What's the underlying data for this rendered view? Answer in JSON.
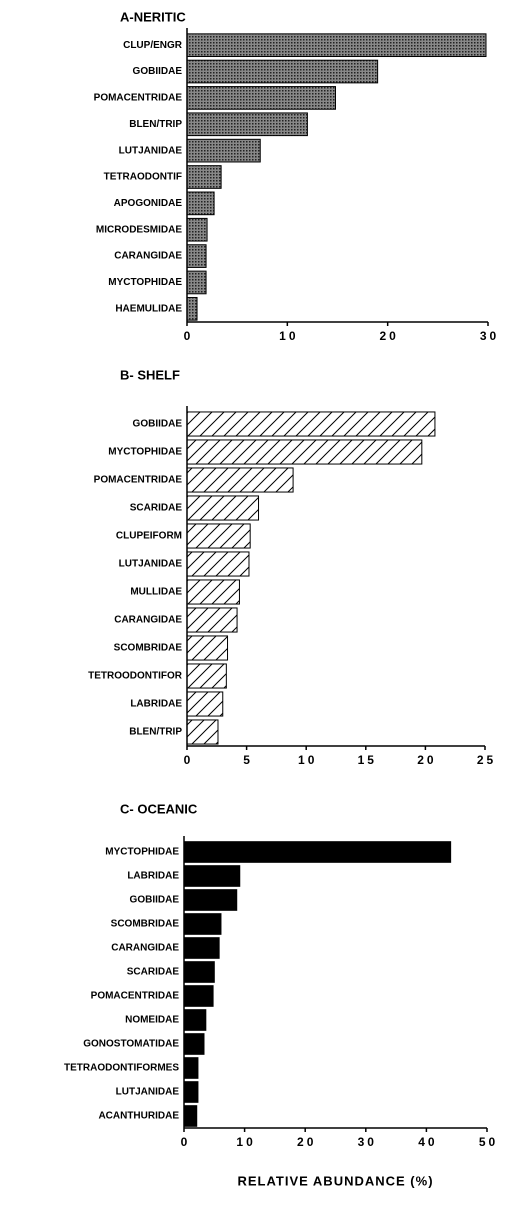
{
  "chart_data": [
    {
      "type": "bar",
      "orientation": "horizontal",
      "title": "A-NERITIC",
      "pattern": "dots",
      "color": "#444444",
      "categories": [
        "CLUP/ENGR",
        "GOBIIDAE",
        "POMACENTRIDAE",
        "BLEN/TRIP",
        "LUTJANIDAE",
        "TETRAODONTIF",
        "APOGONIDAE",
        "MICRODESMIDAE",
        "CARANGIDAE",
        "MYCTOPHIDAE",
        "HAEMULIDAE"
      ],
      "values": [
        29.8,
        19,
        14.8,
        12,
        7.3,
        3.4,
        2.7,
        2,
        1.9,
        1.9,
        1
      ],
      "xlim": [
        0,
        30
      ],
      "xticks": [
        0,
        10,
        20,
        30
      ]
    },
    {
      "type": "bar",
      "orientation": "horizontal",
      "title": "B- SHELF",
      "pattern": "hatch",
      "color": "#000000",
      "categories": [
        "GOBIIDAE",
        "MYCTOPHIDAE",
        "POMACENTRIDAE",
        "SCARIDAE",
        "CLUPEIFORM",
        "LUTJANIDAE",
        "MULLIDAE",
        "CARANGIDAE",
        "SCOMBRIDAE",
        "TETROODONTIFOR",
        "LABRIDAE",
        "BLEN/TRIP"
      ],
      "values": [
        20.8,
        19.7,
        8.9,
        6,
        5.3,
        5.2,
        4.4,
        4.2,
        3.4,
        3.3,
        3,
        2.6
      ],
      "xlim": [
        0,
        25
      ],
      "xticks": [
        0,
        5,
        10,
        15,
        20,
        25
      ]
    },
    {
      "type": "bar",
      "orientation": "horizontal",
      "title": "C- OCEANIC",
      "pattern": "solid",
      "color": "#000000",
      "categories": [
        "MYCTOPHIDAE",
        "LABRIDAE",
        "GOBIIDAE",
        "SCOMBRIDAE",
        "CARANGIDAE",
        "SCARIDAE",
        "POMACENTRIDAE",
        "NOMEIDAE",
        "GONOSTOMATIDAE",
        "TETRAODONTIFORMES",
        "LUTJANIDAE",
        "ACANTHURIDAE"
      ],
      "values": [
        44,
        9.2,
        8.7,
        6.1,
        5.8,
        5,
        4.8,
        3.6,
        3.3,
        2.3,
        2.3,
        2.1
      ],
      "xlim": [
        0,
        50
      ],
      "xticks": [
        0,
        10,
        20,
        30,
        40,
        50
      ],
      "xlabel": "RELATIVE  ABUNDANCE (%)"
    }
  ]
}
